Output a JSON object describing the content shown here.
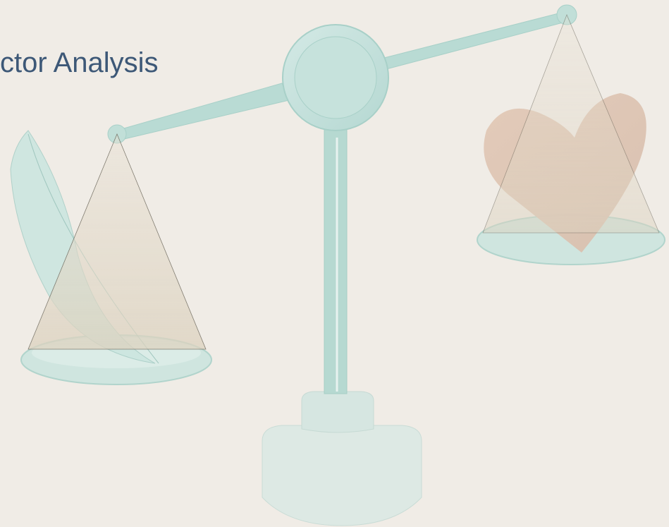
{
  "header": {
    "title": "ctor Analysis"
  }
}
